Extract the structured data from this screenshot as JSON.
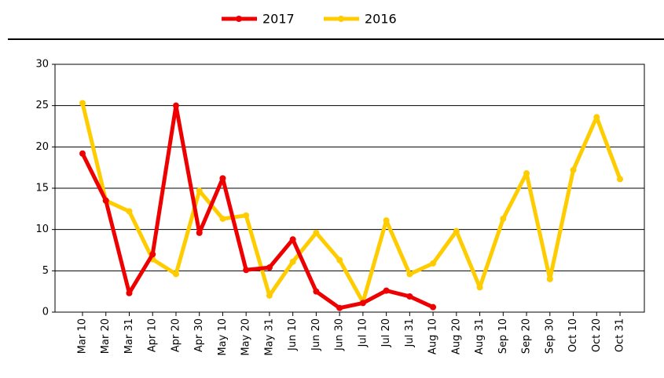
{
  "chart_data": {
    "type": "line",
    "categories": [
      "Mar 10",
      "Mar 20",
      "Mar 31",
      "Apr 10",
      "Apr 20",
      "Apr 30",
      "May 10",
      "May 20",
      "May 31",
      "Jun 10",
      "Jun 20",
      "Jun 30",
      "Jul 10",
      "Jul 20",
      "Jul 31",
      "Aug 10",
      "Aug 20",
      "Aug 31",
      "Sep 10",
      "Sep 20",
      "Sep 30",
      "Oct 10",
      "Oct 20",
      "Oct 31"
    ],
    "series": [
      {
        "name": "2017",
        "color": "#ee0000",
        "values": [
          19.2,
          13.5,
          2.3,
          7,
          25,
          9.6,
          16.2,
          5.1,
          5.4,
          8.8,
          2.5,
          0.5,
          1.1,
          2.6,
          1.9,
          0.6,
          null,
          null,
          null,
          null,
          null,
          null,
          null,
          null
        ]
      },
      {
        "name": "2016",
        "color": "#ffcc00",
        "values": [
          25.3,
          13.5,
          12.2,
          6.4,
          4.6,
          14.7,
          11.3,
          11.7,
          2.0,
          6.1,
          9.6,
          6.3,
          1.2,
          11.1,
          4.6,
          5.9,
          9.8,
          3.0,
          11.3,
          16.8,
          4.0,
          17.2,
          23.6,
          16.1
        ]
      }
    ],
    "ylim": [
      0,
      30
    ],
    "yticks": [
      0,
      5,
      10,
      15,
      20,
      25,
      30
    ],
    "grid": true,
    "legend": "top"
  }
}
